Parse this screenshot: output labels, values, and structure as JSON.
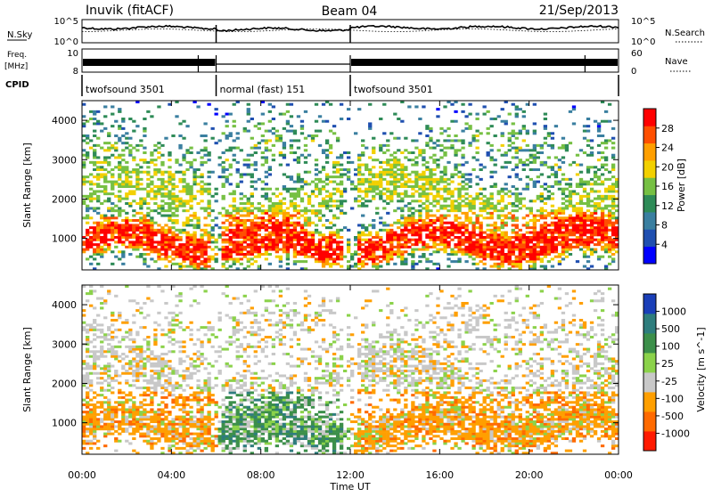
{
  "header": {
    "station": "Inuvik (fitACF)",
    "beam": "Beam 04",
    "date": "21/Sep/2013"
  },
  "strips": {
    "nsky_label": "N.Sky",
    "nsearch_label": "N.Search",
    "nsky_ticks": [
      "10^5",
      "10^0"
    ],
    "freq_label": "Freq.",
    "freq_unit": "[MHz]",
    "freq_ticks": [
      "10",
      "8"
    ],
    "nave_label": "Nave",
    "nave_ticks": [
      "60",
      "0"
    ],
    "cpid_label": "CPID",
    "cpid_segments": [
      {
        "label": "twofsound 3501",
        "start_hour": 0,
        "end_hour": 6
      },
      {
        "label": "normal (fast) 151",
        "start_hour": 6,
        "end_hour": 12
      },
      {
        "label": "twofsound 3501",
        "start_hour": 12,
        "end_hour": 24
      }
    ]
  },
  "chart_data": [
    {
      "type": "heatmap",
      "title": "",
      "ylabel": "Slant Range [km]",
      "xlabel": "",
      "xlim": [
        0,
        24
      ],
      "ylim": [
        200,
        4500
      ],
      "y_ticks": [
        "1000",
        "2000",
        "3000",
        "4000"
      ],
      "colorbar": {
        "label": "Power [dB]",
        "ticks": [
          "4",
          "8",
          "12",
          "16",
          "20",
          "24",
          "28"
        ],
        "range": [
          0,
          30
        ],
        "colors": [
          "#0000ff",
          "#1f4fb0",
          "#3a7fa0",
          "#2e8b57",
          "#76c043",
          "#f2d000",
          "#ff9f00",
          "#ff4f00",
          "#ff0000"
        ]
      }
    },
    {
      "type": "heatmap",
      "title": "",
      "ylabel": "Slant Range [km]",
      "xlabel": "Time UT",
      "xlim": [
        0,
        24
      ],
      "ylim": [
        200,
        4500
      ],
      "y_ticks": [
        "1000",
        "2000",
        "3000",
        "4000"
      ],
      "x_ticks": [
        "00:00",
        "04:00",
        "08:00",
        "12:00",
        "16:00",
        "20:00",
        "00:00"
      ],
      "colorbar": {
        "label": "Velocity [m s^-1]",
        "ticks": [
          "1000",
          "500",
          "100",
          "25",
          "-25",
          "-100",
          "-500",
          "-1000"
        ],
        "colors": [
          "#1a3fb8",
          "#2e7d7d",
          "#3c8f4a",
          "#8bd24a",
          "#c8c8c8",
          "#ff9f00",
          "#ff6a00",
          "#ff1a00"
        ]
      }
    }
  ]
}
